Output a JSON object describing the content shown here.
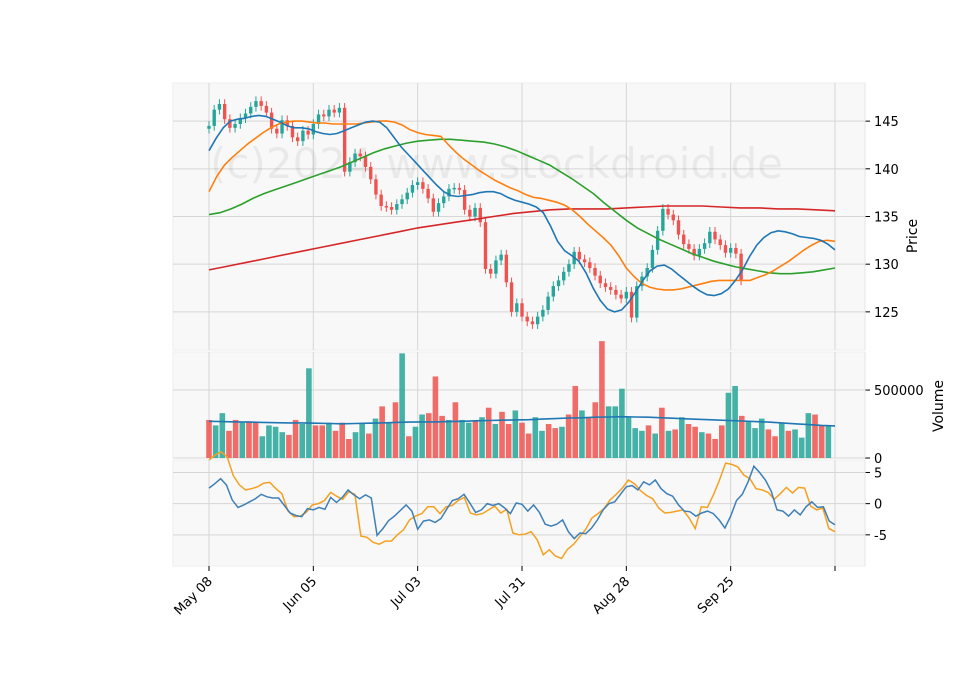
{
  "chart_data": {
    "type": "candlestick",
    "watermark": "(c)2024 www.stockdroid.de",
    "x_tick_labels": [
      "May 08",
      "Jun 05",
      "Jul 03",
      "Jul 31",
      "Aug 28",
      "Sep 25"
    ],
    "price_panel": {
      "ylabel": "Price",
      "y_ticks": [
        125,
        130,
        135,
        140,
        145
      ],
      "ylim": [
        121,
        149
      ],
      "close": [
        144.5,
        146.2,
        146.8,
        145.2,
        144.3,
        144.7,
        145.3,
        145.8,
        146.5,
        147.1,
        146.6,
        145.9,
        144.2,
        143.7,
        145.1,
        144.5,
        143.3,
        142.9,
        144.0,
        143.6,
        144.7,
        145.7,
        145.5,
        146.2,
        145.9,
        146.4,
        139.7,
        140.7,
        141.6,
        141.3,
        140.2,
        138.9,
        137.3,
        136.1,
        136.0,
        135.7,
        136.3,
        136.8,
        137.5,
        138.3,
        138.6,
        137.9,
        136.9,
        135.5,
        136.4,
        137.1,
        137.9,
        138.0,
        137.8,
        135.7,
        135.0,
        135.9,
        134.4,
        129.5,
        129.0,
        130.4,
        131.0,
        128.1,
        125.0,
        125.9,
        124.5,
        124.0,
        123.7,
        124.5,
        125.2,
        126.6,
        127.7,
        128.3,
        129.2,
        130.0,
        131.3,
        130.5,
        130.2,
        129.6,
        128.8,
        128.0,
        127.6,
        127.3,
        126.8,
        126.4,
        127.1,
        124.4,
        127.7,
        128.7,
        129.6,
        131.5,
        133.5,
        135.8,
        135.2,
        134.6,
        133.1,
        132.1,
        131.6,
        130.9,
        131.6,
        132.2,
        133.4,
        132.6,
        132.0,
        131.2,
        131.7,
        131.1,
        128.3
      ],
      "sma_blue": [
        141.9,
        143.2,
        144.3,
        145.0,
        145.2,
        145.3,
        145.5,
        145.6,
        145.5,
        145.2,
        144.9,
        144.5,
        144.3,
        144.3,
        144.2,
        143.9,
        143.7,
        143.6,
        143.7,
        144.0,
        144.3,
        144.6,
        144.9,
        145.0,
        144.9,
        144.3,
        143.3,
        142.3,
        141.5,
        140.7,
        139.9,
        139.1,
        138.3,
        137.6,
        137.2,
        137.1,
        137.2,
        137.3,
        137.5,
        137.6,
        137.6,
        137.4,
        137.0,
        136.7,
        136.5,
        136.3,
        136.0,
        135.4,
        134.0,
        132.4,
        131.4,
        130.9,
        130.3,
        129.1,
        127.5,
        126.2,
        125.3,
        125.0,
        125.2,
        126.0,
        127.1,
        128.3,
        129.3,
        129.8,
        129.9,
        129.5,
        128.9,
        128.3,
        127.7,
        127.2,
        126.8,
        126.7,
        126.9,
        127.4,
        128.3,
        129.4,
        130.8,
        132.0,
        132.8,
        133.3,
        133.5,
        133.4,
        133.2,
        132.9,
        132.8,
        132.7,
        132.5,
        132.1,
        131.5
      ],
      "sma_orange": [
        137.6,
        139.2,
        140.4,
        141.2,
        141.9,
        142.6,
        143.2,
        143.8,
        144.3,
        144.7,
        144.9,
        145.0,
        145.0,
        144.9,
        144.8,
        144.8,
        144.7,
        144.7,
        144.7,
        144.7,
        144.8,
        144.9,
        145.0,
        145.0,
        144.9,
        144.6,
        144.1,
        143.8,
        143.6,
        143.5,
        143.4,
        142.5,
        141.7,
        141.0,
        140.4,
        139.8,
        139.3,
        138.8,
        138.4,
        138.0,
        137.7,
        137.3,
        137.0,
        136.9,
        136.7,
        136.5,
        136.2,
        135.7,
        135.0,
        134.2,
        133.5,
        132.8,
        132.0,
        130.9,
        129.6,
        128.7,
        128.0,
        127.6,
        127.4,
        127.3,
        127.3,
        127.4,
        127.6,
        127.8,
        128.0,
        128.2,
        128.3,
        128.3,
        128.3,
        128.3,
        128.3,
        128.6,
        128.9,
        129.3,
        129.8,
        130.3,
        130.9,
        131.5,
        132.0,
        132.4,
        132.5,
        132.4
      ],
      "sma_green": [
        135.2,
        135.4,
        135.8,
        136.3,
        136.9,
        137.4,
        137.8,
        138.2,
        138.6,
        139.0,
        139.4,
        139.8,
        140.2,
        140.7,
        141.2,
        141.7,
        142.1,
        142.4,
        142.7,
        142.9,
        143.0,
        143.1,
        143.1,
        143.0,
        142.9,
        142.8,
        142.6,
        142.3,
        141.9,
        141.4,
        140.9,
        140.4,
        139.7,
        139.0,
        138.2,
        137.4,
        136.4,
        135.5,
        134.6,
        133.8,
        133.2,
        132.6,
        132.1,
        131.6,
        131.1,
        130.7,
        130.3,
        130.0,
        129.7,
        129.5,
        129.3,
        129.1,
        129.0,
        129.0,
        129.1,
        129.2,
        129.4,
        129.6
      ],
      "sma_red": [
        129.4,
        129.8,
        130.2,
        130.6,
        131.0,
        131.4,
        131.8,
        132.2,
        132.6,
        133.0,
        133.4,
        133.8,
        134.1,
        134.4,
        134.7,
        135.0,
        135.3,
        135.5,
        135.7,
        135.8,
        135.8,
        135.8,
        135.9,
        136.0,
        136.1,
        136.1,
        136.1,
        136.0,
        135.9,
        135.9,
        135.8,
        135.8,
        135.7,
        135.6
      ],
      "series_colors": {
        "sma_blue": "#1f77b4",
        "sma_orange": "#ff7f0e",
        "sma_green": "#2ca02c",
        "sma_red": "#d62728"
      }
    },
    "volume_panel": {
      "ylabel": "Volume",
      "y_ticks": [
        0,
        500000
      ],
      "ylim": [
        0,
        780000
      ],
      "values": [
        280000,
        240000,
        330000,
        200000,
        280000,
        260000,
        270000,
        260000,
        160000,
        240000,
        230000,
        190000,
        170000,
        280000,
        250000,
        660000,
        240000,
        240000,
        260000,
        200000,
        260000,
        140000,
        190000,
        250000,
        180000,
        290000,
        380000,
        260000,
        410000,
        770000,
        160000,
        230000,
        320000,
        330000,
        600000,
        310000,
        280000,
        410000,
        280000,
        260000,
        270000,
        300000,
        370000,
        250000,
        340000,
        250000,
        350000,
        260000,
        180000,
        300000,
        200000,
        250000,
        220000,
        230000,
        320000,
        530000,
        350000,
        300000,
        410000,
        860000,
        380000,
        380000,
        510000,
        300000,
        220000,
        200000,
        240000,
        180000,
        370000,
        200000,
        210000,
        300000,
        250000,
        230000,
        190000,
        180000,
        140000,
        240000,
        480000,
        530000,
        310000,
        270000,
        220000,
        290000,
        210000,
        160000,
        260000,
        200000,
        210000,
        150000,
        330000,
        320000,
        240000,
        240000
      ],
      "up": [
        0,
        1,
        1,
        0,
        0,
        1,
        0,
        0,
        1,
        1,
        1,
        1,
        0,
        0,
        1,
        1,
        0,
        0,
        1,
        0,
        0,
        0,
        1,
        1,
        0,
        1,
        0,
        1,
        0,
        1,
        0,
        1,
        1,
        0,
        0,
        0,
        1,
        0,
        1,
        1,
        0,
        1,
        0,
        1,
        0,
        0,
        1,
        0,
        0,
        1,
        1,
        0,
        0,
        1,
        0,
        0,
        1,
        0,
        0,
        0,
        1,
        1,
        1,
        1,
        1,
        1,
        0,
        1,
        0,
        1,
        0,
        1,
        0,
        0,
        1,
        0,
        0,
        0,
        1,
        1,
        0,
        1,
        1,
        1,
        0,
        0,
        1,
        0,
        1,
        1,
        1,
        0,
        0,
        1
      ],
      "avg": [
        270000,
        268000,
        266000,
        264000,
        262000,
        260000,
        258000,
        258000,
        256000,
        254000,
        252000,
        254000,
        256000,
        258000,
        262000,
        264000,
        266000,
        266000,
        268000,
        270000,
        274000,
        276000,
        278000,
        280000,
        282000,
        286000,
        290000,
        294000,
        296000,
        300000,
        302000,
        304000,
        302000,
        300000,
        296000,
        292000,
        288000,
        284000,
        280000,
        276000,
        272000,
        268000,
        264000,
        258000,
        252000,
        246000,
        240000,
        236000
      ],
      "colors": {
        "up": "#26a69a",
        "down": "#ef5350",
        "avg": "#1f77b4"
      }
    },
    "oscillator_panel": {
      "y_ticks": [
        -5,
        0,
        5
      ],
      "ylim": [
        -10,
        7
      ],
      "line_blue": [
        2.5,
        3.2,
        4.0,
        3.0,
        0.6,
        -0.6,
        -0.2,
        0.3,
        0.8,
        1.5,
        1.1,
        0.9,
        0.9,
        -0.3,
        -1.5,
        -1.9,
        -2.1,
        -0.8,
        -1.0,
        -0.6,
        -0.9,
        1.0,
        0.2,
        1.0,
        2.2,
        1.4,
        0.8,
        1.4,
        0.9,
        -5.1,
        -4.0,
        -2.7,
        -2.0,
        -1.1,
        -0.2,
        -1.2,
        -4.1,
        -2.8,
        -2.6,
        -3.0,
        -2.4,
        -0.9,
        0.5,
        0.8,
        1.5,
        0.1,
        -1.4,
        -1.0,
        0.0,
        -0.3,
        0.0,
        -0.7,
        -1.6,
        0.1,
        -0.1,
        -1.2,
        -0.2,
        -1.4,
        -3.3,
        -3.6,
        -3.3,
        -2.6,
        -4.5,
        -5.6,
        -4.7,
        -4.8,
        -3.9,
        -2.6,
        -1.0,
        0.0,
        0.3,
        1.5,
        2.7,
        2.9,
        2.2,
        3.5,
        3.0,
        3.8,
        2.4,
        1.6,
        1.2,
        -0.2,
        -1.2,
        -1.3,
        -2.0,
        -1.5,
        -1.2,
        -1.6,
        -2.6,
        -3.9,
        -2.0,
        0.5,
        1.5,
        3.5,
        6.0,
        5.0,
        3.8,
        2.0,
        -1.0,
        -1.2,
        -2.0,
        -1.0,
        -1.8,
        -0.5,
        0.3,
        -0.6,
        -0.5,
        -2.8,
        -3.4
      ],
      "line_orange": [
        7.0,
        7.8,
        8.3,
        7.5,
        4.5,
        3.0,
        2.2,
        2.4,
        2.7,
        3.3,
        3.4,
        2.4,
        1.6,
        -1.2,
        -2.1,
        -2.0,
        -1.4,
        -0.2,
        0.0,
        0.5,
        1.8,
        1.2,
        0.7,
        1.9,
        1.5,
        -5.2,
        -5.4,
        -6.2,
        -6.5,
        -6.0,
        -6.0,
        -5.0,
        -4.2,
        -2.6,
        -2.0,
        -1.6,
        -0.5,
        -0.5,
        -1.6,
        -0.5,
        -0.3,
        0.5,
        1.0,
        -1.5,
        -1.8,
        -1.6,
        -1.0,
        -0.4,
        -1.5,
        -0.9,
        -4.7,
        -5.0,
        -4.9,
        -4.5,
        -5.8,
        -8.2,
        -7.4,
        -8.4,
        -8.8,
        -7.3,
        -6.5,
        -5.3,
        -4.1,
        -2.3,
        -1.6,
        -0.8,
        0.6,
        1.5,
        2.5,
        3.8,
        3.2,
        2.1,
        1.3,
        0.8,
        -0.7,
        -1.5,
        -1.4,
        -1.2,
        -1.0,
        -2.3,
        -4.0,
        -0.5,
        -0.6,
        1.4,
        3.8,
        6.5,
        6.3,
        5.9,
        4.6,
        4.0,
        2.4,
        2.2,
        1.8,
        0.7,
        1.6,
        2.6,
        1.7,
        2.6,
        2.5,
        -0.4,
        -1.0,
        -0.7,
        -4.0,
        -4.5
      ],
      "colors": {
        "blue": "#3e7fb8",
        "orange": "#f5a020"
      }
    }
  }
}
